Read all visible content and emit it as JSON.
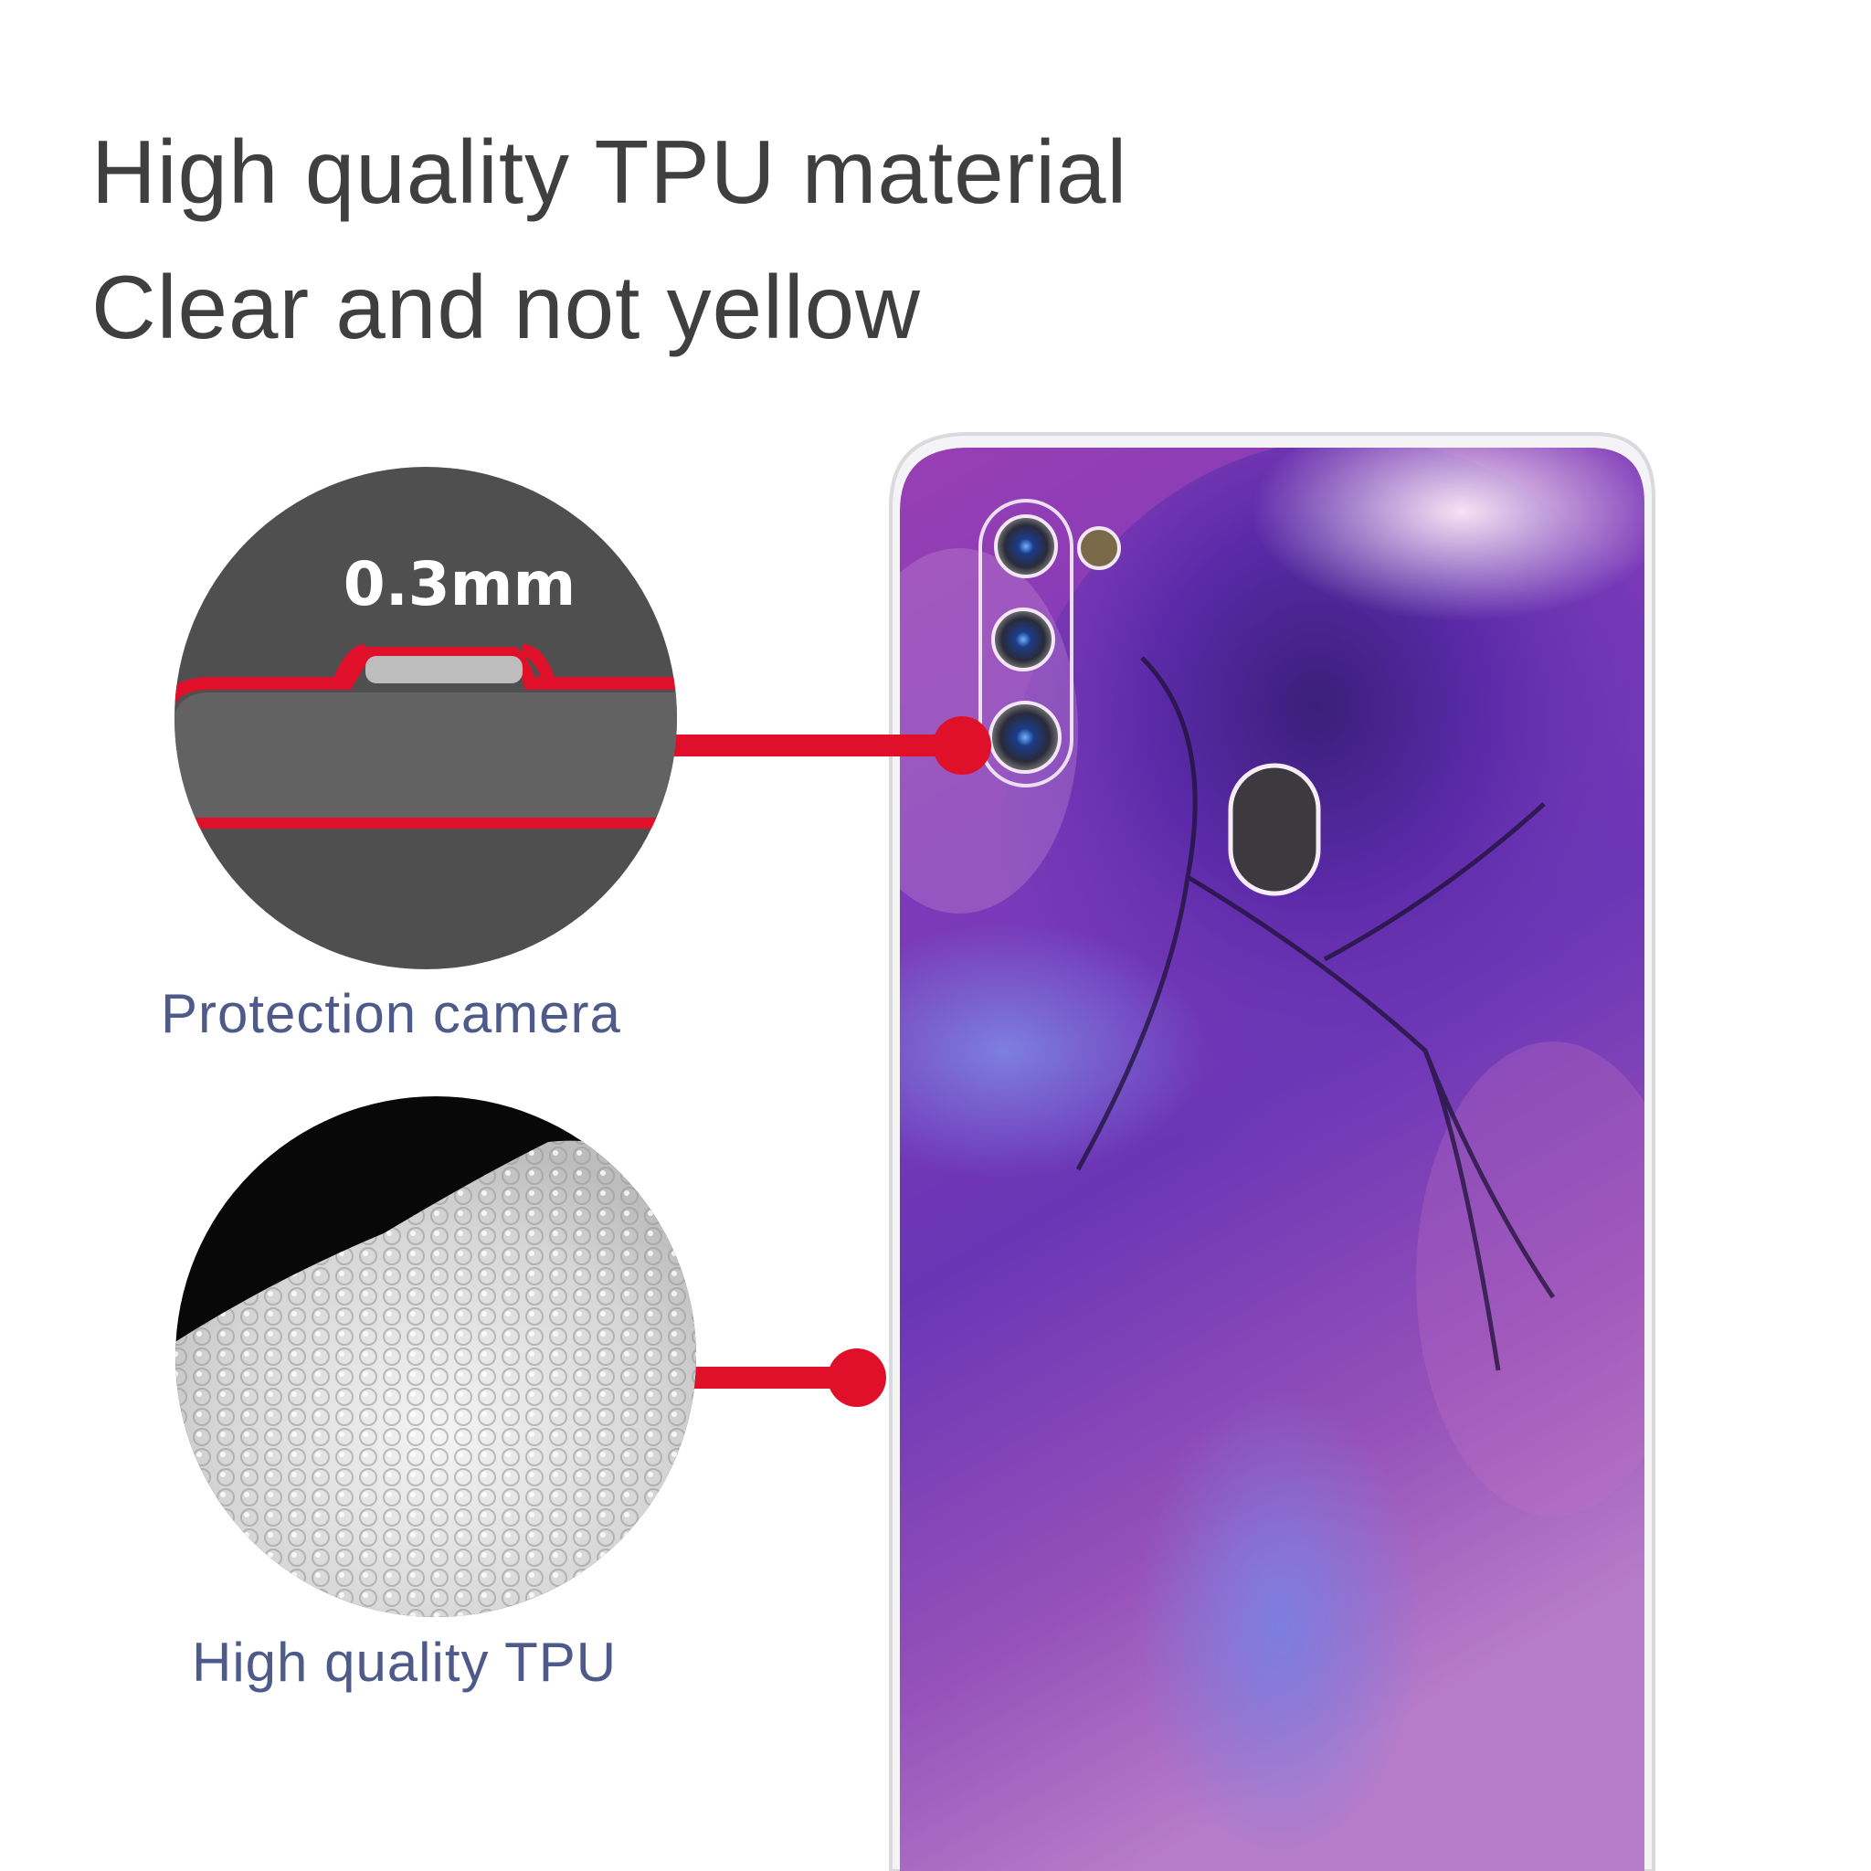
{
  "headline": {
    "line1": "High quality TPU material",
    "line2": "Clear and not yellow"
  },
  "callouts": [
    {
      "inset_text": "0.3mm",
      "label": "Protection camera"
    },
    {
      "label": "High quality TPU"
    }
  ],
  "colors": {
    "accent_red": "#e0102a",
    "headline_text": "#3f3f3f",
    "label_text": "#4d5a8a",
    "marble_purple": "#6a2fb0",
    "marble_magenta": "#a94cb4"
  }
}
